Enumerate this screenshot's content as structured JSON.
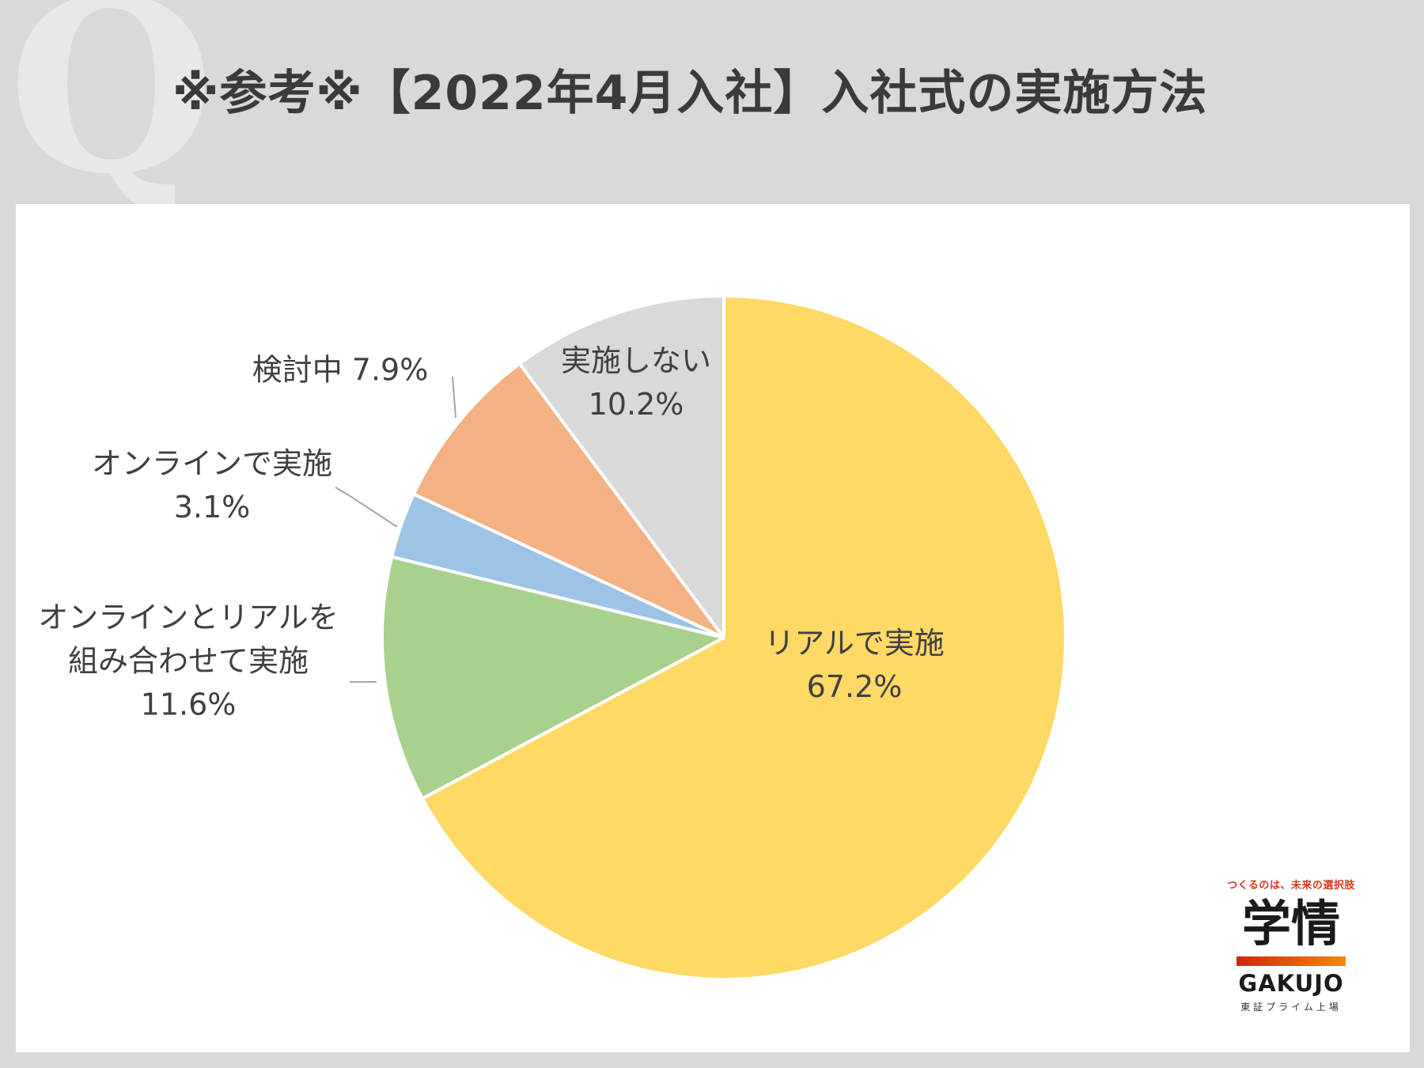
{
  "title": "※参考※【2022年4月入社】入社式の実施方法",
  "q_mark": "Q",
  "chart_data": {
    "type": "pie",
    "title": "",
    "slices": [
      {
        "label": "リアルで実施",
        "label_lines": [
          "リアルで実施",
          "67.2%"
        ],
        "value": 67.2,
        "color": "#ffd966"
      },
      {
        "label": "オンラインとリアルを組み合わせて実施",
        "label_lines": [
          "オンラインとリアルを",
          "組み合わせて実施",
          "11.6%"
        ],
        "value": 11.6,
        "color": "#a9d18e"
      },
      {
        "label": "オンラインで実施",
        "label_lines": [
          "オンラインで実施",
          "3.1%"
        ],
        "value": 3.1,
        "color": "#9dc3e6"
      },
      {
        "label": "検討中",
        "label_lines": [
          "検討中 7.9%"
        ],
        "value": 7.9,
        "color": "#f4b183"
      },
      {
        "label": "実施しない",
        "label_lines": [
          "実施しない",
          "10.2%"
        ],
        "value": 10.2,
        "color": "#d9d9d9"
      }
    ]
  },
  "logo": {
    "tagline": "つくるのは、未来の選択肢",
    "kanji": "学情",
    "name": "GAKUJO",
    "sub": "東証プライム上場"
  }
}
